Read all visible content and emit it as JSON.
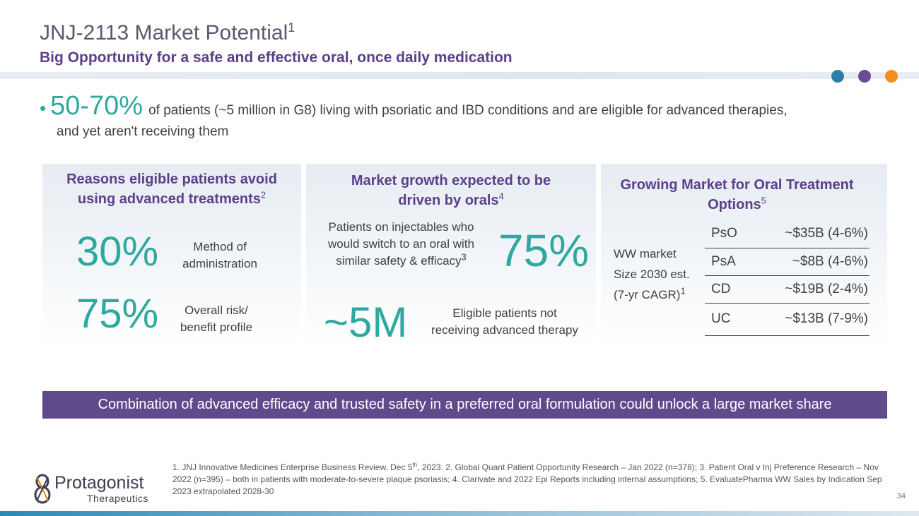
{
  "header": {
    "title": "JNJ-2113 Market Potential",
    "title_sup": "1",
    "subtitle": "Big Opportunity for a safe and effective oral, once daily medication",
    "dot_colors": [
      "#2e7fa8",
      "#6a4c93",
      "#f28e1c"
    ]
  },
  "bullet": {
    "mark": "•",
    "highlight": "50-70%",
    "text_line1": "of patients (~5 million in G8) living with psoriatic and IBD conditions and are eligible for advanced therapies,",
    "text_line2": "and yet aren't receiving them"
  },
  "panel1": {
    "title_line1": "Reasons eligible patients avoid",
    "title_line2": "using advanced treatments",
    "title_sup": "2",
    "stat1_value": "30%",
    "stat1_label_line1": "Method of",
    "stat1_label_line2": "administration",
    "stat2_value": "75%",
    "stat2_label_line1": "Overall risk/",
    "stat2_label_line2": "benefit profile"
  },
  "panel2": {
    "title_line1": "Market growth expected to be",
    "title_line2": "driven by orals",
    "title_sup": "4",
    "stat1_label_line1": "Patients on injectables who",
    "stat1_label_line2": "would switch to an oral with",
    "stat1_label_line3": "similar safety & efficacy",
    "stat1_label_sup": "3",
    "stat1_value": "75%",
    "stat2_value": "~5M",
    "stat2_label_line1": "Eligible patients not",
    "stat2_label_line2": "receiving advanced therapy"
  },
  "panel3": {
    "title_line1": "Growing Market for Oral Treatment",
    "title_line2": "Options",
    "title_sup": "5",
    "side_label_line1": "WW market",
    "side_label_line2": "Size 2030 est.",
    "side_label_line3": "(7-yr CAGR)",
    "side_label_sup": "1",
    "rows": [
      {
        "segment": "PsO",
        "value": "~$35B (4-6%)"
      },
      {
        "segment": "PsA",
        "value": "~$8B (4-6%)"
      },
      {
        "segment": "CD",
        "value": "~$19B (2-4%)"
      },
      {
        "segment": "UC",
        "value": "~$13B (7-9%)"
      }
    ]
  },
  "banner": {
    "text": "Combination of advanced efficacy and trusted safety in a preferred oral formulation could unlock a large market share"
  },
  "logo": {
    "mark": "8",
    "name": "Protagonist",
    "sub": "Therapeutics"
  },
  "footnote": {
    "part1": "1.  JNJ Innovative Medicines Enterprise Business Review, Dec 5",
    "sup": "th",
    "part2": ", 2023. 2. Global Quant Patient Opportunity Research – Jan 2022 (n=378); 3. Patient Oral v Inj Preference Research – Nov 2022 (n=395) – both in patients with moderate-to-severe plaque psoriasis; 4. Clarivate and   2022 Epi Reports including internal assumptions; 5. EvaluatePharma WW Sales by Indication Sep 2023 extrapolated 2028-30"
  },
  "page_number": "34"
}
